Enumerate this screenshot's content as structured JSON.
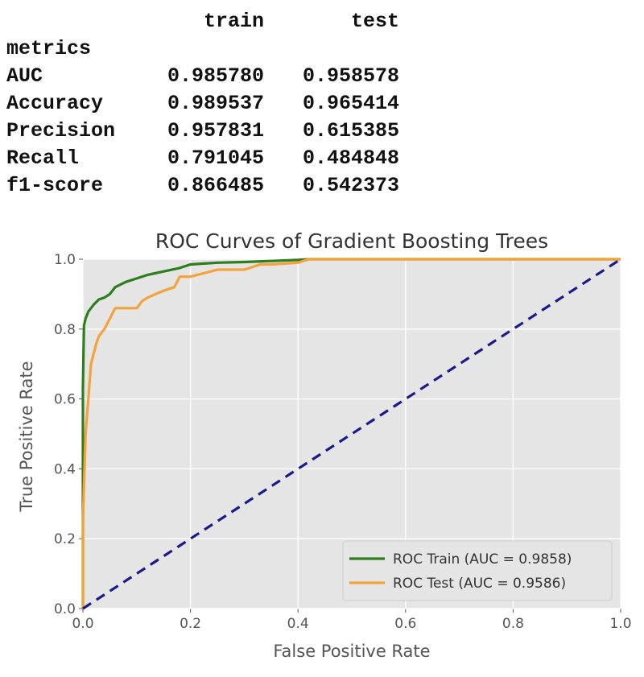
{
  "metrics_table": {
    "columns": [
      "",
      "train",
      "test"
    ],
    "index_name": "metrics",
    "rows": [
      {
        "name": "AUC",
        "train": "0.985780",
        "test": "0.958578"
      },
      {
        "name": "Accuracy",
        "train": "0.989537",
        "test": "0.965414"
      },
      {
        "name": "Precision",
        "train": "0.957831",
        "test": "0.615385"
      },
      {
        "name": "Recall",
        "train": "0.791045",
        "test": "0.484848"
      },
      {
        "name": "f1-score",
        "train": "0.866485",
        "test": "0.542373"
      }
    ]
  },
  "chart_data": {
    "type": "line",
    "title": "ROC Curves of Gradient Boosting Trees",
    "xlabel": "False Positive Rate",
    "ylabel": "True Positive Rate",
    "xlim": [
      0.0,
      1.0
    ],
    "ylim": [
      0.0,
      1.0
    ],
    "xticks": [
      "0.0",
      "0.2",
      "0.4",
      "0.6",
      "0.8",
      "1.0"
    ],
    "yticks": [
      "0.0",
      "0.2",
      "0.4",
      "0.6",
      "0.8",
      "1.0"
    ],
    "grid": true,
    "legend_position": "lower-right",
    "series": [
      {
        "name": "ROC Train (AUC = 0.9858)",
        "color": "#2e7d1e",
        "x": [
          0.0,
          0.0,
          0.002,
          0.005,
          0.01,
          0.015,
          0.02,
          0.03,
          0.04,
          0.05,
          0.06,
          0.08,
          0.1,
          0.12,
          0.15,
          0.18,
          0.2,
          0.25,
          0.3,
          0.35,
          0.4,
          0.42,
          0.5,
          0.6,
          0.8,
          1.0
        ],
        "y": [
          0.0,
          0.63,
          0.81,
          0.83,
          0.85,
          0.86,
          0.87,
          0.885,
          0.89,
          0.9,
          0.92,
          0.935,
          0.945,
          0.955,
          0.965,
          0.975,
          0.985,
          0.99,
          0.992,
          0.995,
          0.998,
          1.0,
          1.0,
          1.0,
          1.0,
          1.0
        ]
      },
      {
        "name": "ROC Test (AUC = 0.9586)",
        "color": "#f5a23a",
        "x": [
          0.0,
          0.0,
          0.005,
          0.01,
          0.015,
          0.02,
          0.025,
          0.03,
          0.04,
          0.05,
          0.06,
          0.07,
          0.1,
          0.11,
          0.12,
          0.15,
          0.17,
          0.18,
          0.2,
          0.25,
          0.3,
          0.33,
          0.35,
          0.4,
          0.42,
          0.6,
          0.8,
          1.0
        ],
        "y": [
          0.0,
          0.25,
          0.5,
          0.6,
          0.7,
          0.73,
          0.76,
          0.78,
          0.8,
          0.83,
          0.86,
          0.86,
          0.86,
          0.88,
          0.89,
          0.91,
          0.92,
          0.95,
          0.95,
          0.97,
          0.97,
          0.985,
          0.985,
          0.99,
          1.0,
          1.0,
          1.0,
          1.0
        ]
      },
      {
        "name": "",
        "color": "#1a1a8c",
        "style": "dashed",
        "x": [
          0.0,
          1.0
        ],
        "y": [
          0.0,
          1.0
        ]
      }
    ]
  }
}
